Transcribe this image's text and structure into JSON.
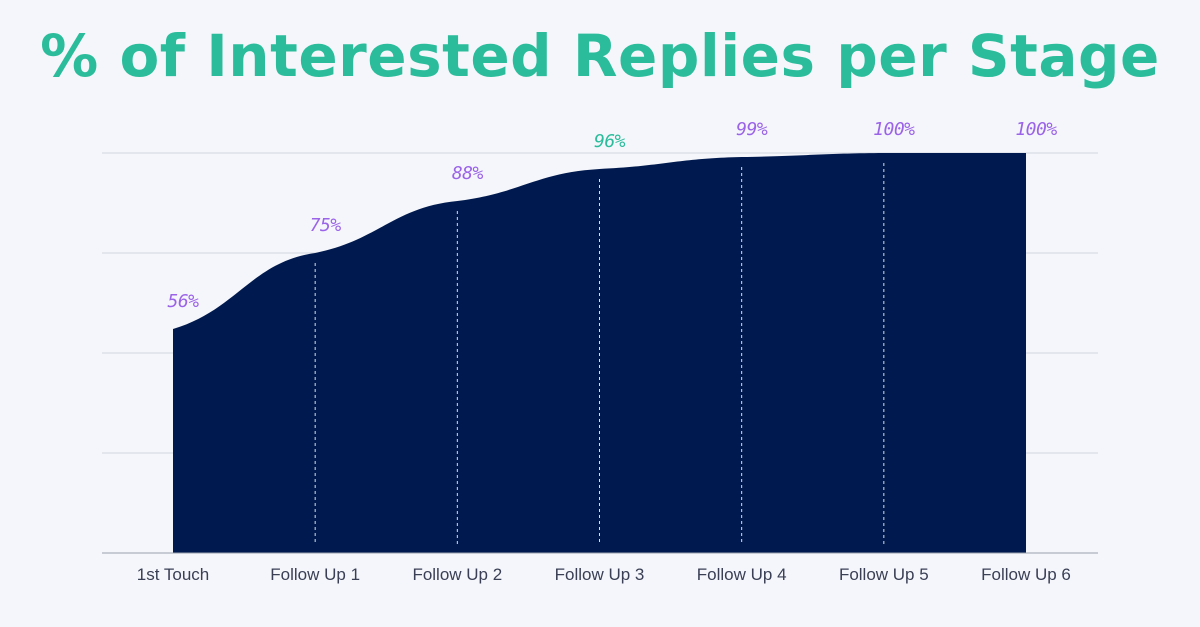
{
  "title": "% of Interested Replies per Stage",
  "colors": {
    "title": "#2bbd9b",
    "area": "#001a4f",
    "gridline": "#d3d6df",
    "axis": "#9aa0ae",
    "divider": "#ffffff",
    "label_default": "#9b63e8",
    "label_highlight": "#2bbd9b",
    "tick_text": "#3a3f55",
    "background": "#f4f6fb"
  },
  "chart_data": {
    "type": "area",
    "categories": [
      "1st Touch",
      "Follow Up 1",
      "Follow Up 2",
      "Follow Up 3",
      "Follow Up 4",
      "Follow Up 5",
      "Follow Up 6"
    ],
    "values": [
      56,
      75,
      88,
      96,
      99,
      100,
      100
    ],
    "data_labels": [
      "56%",
      "75%",
      "88%",
      "96%",
      "99%",
      "100%",
      "100%"
    ],
    "highlighted_label_index": 3,
    "ylim": [
      0,
      100
    ],
    "grid": true,
    "xlabel": "",
    "ylabel": ""
  }
}
